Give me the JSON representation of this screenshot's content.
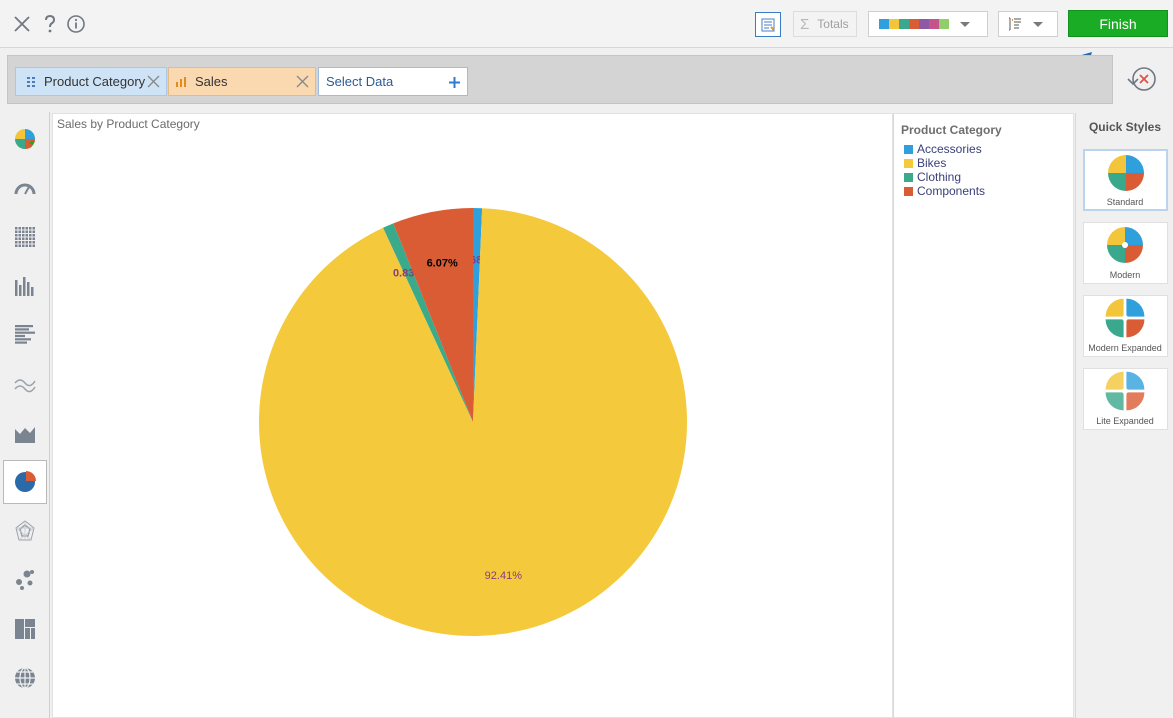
{
  "toolbar": {
    "close_icon": "close-icon",
    "help_icon": "help-icon",
    "info_icon": "info-icon",
    "totals_label": "Totals",
    "palette_colors": [
      "#2fa0dc",
      "#f2c53b",
      "#3aa88c",
      "#d95c35",
      "#8e5aa6",
      "#c5548d",
      "#8fce6b"
    ],
    "finish_label": "Finish"
  },
  "fields": {
    "category_label": "Product Category",
    "sales_label": "Sales",
    "select_label": "Select Data"
  },
  "sidebar": {
    "items": [
      "smart-pie-icon",
      "gauge-icon",
      "grid-table-icon",
      "column-chart-icon",
      "bar-chart-icon",
      "line-chart-icon",
      "area-chart-icon",
      "pie-chart-icon",
      "radar-chart-icon",
      "scatter-icon",
      "treemap-icon",
      "globe-icon"
    ],
    "active": "pie-chart-icon"
  },
  "chart_data": {
    "type": "pie",
    "title": "Sales by Product Category",
    "categories": [
      "Accessories",
      "Bikes",
      "Clothing",
      "Components"
    ],
    "values": [
      0.68,
      92.41,
      0.83,
      6.07
    ],
    "labels": [
      "0.68%",
      "92.41%",
      "0.83%",
      "6.07%"
    ],
    "colors": [
      "#2fa0dc",
      "#f4ca3c",
      "#3aaa8b",
      "#d95c35"
    ]
  },
  "legend": {
    "title": "Product Category",
    "items": [
      {
        "label": "Accessories",
        "color": "#2fa0dc"
      },
      {
        "label": "Bikes",
        "color": "#f4ca3c"
      },
      {
        "label": "Clothing",
        "color": "#3aaa8b"
      },
      {
        "label": "Components",
        "color": "#d95c35"
      }
    ]
  },
  "quick_styles": {
    "title": "Quick Styles",
    "items": [
      "Standard",
      "Modern",
      "Modern Expanded",
      "Lite Expanded"
    ],
    "active": "Standard"
  }
}
